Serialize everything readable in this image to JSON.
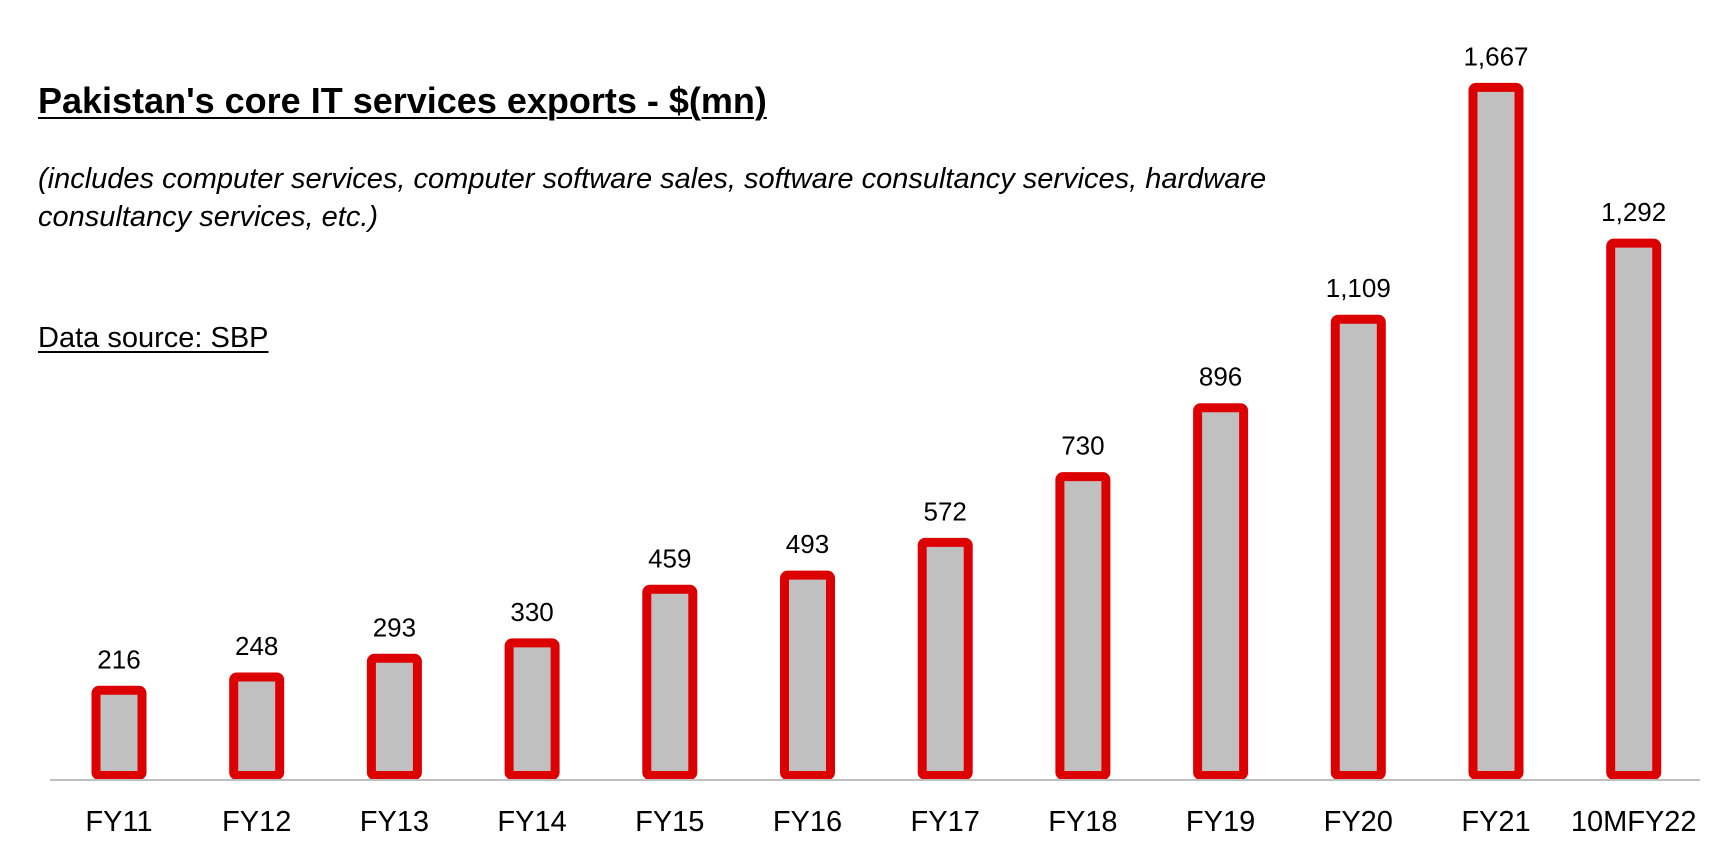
{
  "chart_data": {
    "type": "bar",
    "title": "Pakistan's core IT services exports - $(mn)",
    "subtitle": "(includes computer services, computer software sales, software consultancy services, hardware consultancy services, etc.)",
    "source": "Data source: SBP",
    "categories": [
      "FY11",
      "FY12",
      "FY13",
      "FY14",
      "FY15",
      "FY16",
      "FY17",
      "FY18",
      "FY19",
      "FY20",
      "FY21",
      "10MFY22"
    ],
    "values": [
      216,
      248,
      293,
      330,
      459,
      493,
      572,
      730,
      896,
      1109,
      1667,
      1292
    ],
    "data_labels": [
      "216",
      "248",
      "293",
      "330",
      "459",
      "493",
      "572",
      "730",
      "896",
      "1,109",
      "1,667",
      "1,292"
    ],
    "xlabel": "",
    "ylabel": "",
    "ylim": [
      0,
      1700
    ],
    "grid": false,
    "legend": "none",
    "colors": {
      "bar_fill": "#c0c0c0",
      "bar_border": "#dd0000",
      "axis": "#bfbfbf"
    }
  }
}
